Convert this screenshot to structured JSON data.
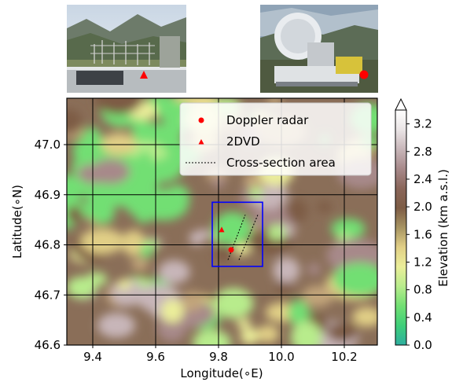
{
  "photos": [
    {
      "caption": "",
      "marker": "triangle",
      "marker_color": "#ff0000"
    },
    {
      "caption": "",
      "marker": "circle",
      "marker_color": "#ff0000"
    }
  ],
  "chart_data": {
    "type": "heatmap",
    "title": "",
    "xlabel": "Longitude(∘E)",
    "ylabel": "Latitude(∘N)",
    "xlim": [
      9.3,
      10.3
    ],
    "ylim": [
      46.6,
      46.9
    ],
    "xticks": [
      "9.4",
      "9.6",
      "9.8",
      "10.0",
      "10.2"
    ],
    "yticks": [
      "46.6",
      "46.7",
      "46.8",
      "46.9",
      "47.0"
    ],
    "ytick_values": [
      46.6,
      46.7,
      46.8,
      46.9,
      47.0
    ],
    "xtick_values": [
      9.4,
      9.6,
      9.8,
      10.0,
      10.2
    ],
    "grid": true,
    "colorbar": {
      "label": "Elevation (km a.s.l.)",
      "ticks": [
        "0.0",
        "0.4",
        "0.8",
        "1.2",
        "1.6",
        "2.0",
        "2.4",
        "2.8",
        "3.2"
      ],
      "range": [
        0.0,
        3.4
      ],
      "colors": [
        "#2eae9f",
        "#3ecf79",
        "#72df73",
        "#b8ec8c",
        "#ebee9a",
        "#e1cf86",
        "#a79462",
        "#7d5c45",
        "#8a665a",
        "#a7898a",
        "#c8b6b9",
        "#eae5e6",
        "#ffffff"
      ]
    },
    "legend": {
      "placement": "upper-right",
      "entries": [
        {
          "label": "Doppler radar",
          "marker": "circle",
          "color": "#ff0000"
        },
        {
          "label": "2DVD",
          "marker": "triangle",
          "color": "#ff0000"
        },
        {
          "label": "Cross-section area",
          "marker": "dashed-line",
          "color": "#000000"
        }
      ]
    },
    "points": [
      {
        "name": "Doppler radar",
        "x": 9.84,
        "y": 46.79,
        "marker": "circle"
      },
      {
        "name": "2DVD",
        "x": 9.81,
        "y": 46.83,
        "marker": "triangle"
      }
    ],
    "box": {
      "x0": 9.78,
      "x1": 9.94,
      "y0": 46.757,
      "y1": 46.885,
      "color": "#0000ff"
    },
    "cross_section_lines": [
      {
        "x0": 9.83,
        "y0": 46.77,
        "x1": 9.885,
        "y1": 46.86
      },
      {
        "x0": 9.865,
        "y0": 46.77,
        "x1": 9.925,
        "y1": 46.86
      }
    ]
  }
}
